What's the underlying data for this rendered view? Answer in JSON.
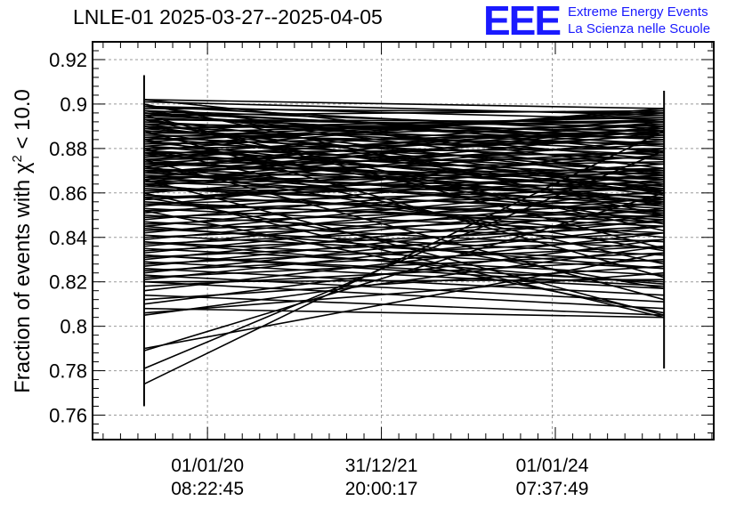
{
  "header": {
    "title": "LNLE-01 2025-03-27--2025-04-05",
    "logo_mark": "EEE",
    "logo_line1": "Extreme Energy Events",
    "logo_line2": "La Scienza nelle Scuole"
  },
  "colors": {
    "brand": "#1a1aff",
    "series": "#000000",
    "grid": "#9a9a9a"
  },
  "chart_data": {
    "type": "line",
    "title": "LNLE-01 2025-03-27--2025-04-05",
    "ylabel_main": "Fraction of events with χ",
    "ylabel_sup": "2",
    "ylabel_tail": " < 10.0",
    "xlabel": "",
    "ylim": [
      0.749,
      0.928
    ],
    "yticks": [
      0.76,
      0.78,
      0.8,
      0.82,
      0.84,
      0.86,
      0.88,
      0.9,
      0.92
    ],
    "ytick_labels": [
      "0.76",
      "0.78",
      "0.8",
      "0.82",
      "0.84",
      "0.86",
      "0.88",
      "0.9",
      "0.92"
    ],
    "xlim": [
      0,
      100
    ],
    "x_points": [
      8.3,
      92.0
    ],
    "xticks": [
      18.5,
      46.5,
      74.0
    ],
    "xtick_labels": [
      [
        "01/01/20",
        "08:22:45"
      ],
      [
        "31/12/21",
        "20:00:17"
      ],
      [
        "01/01/24",
        "07:37:49"
      ]
    ],
    "grid": true,
    "error_bars": [
      {
        "x": 8.3,
        "low": 0.764,
        "high": 0.913
      },
      {
        "x": 92.0,
        "low": 0.781,
        "high": 0.906
      }
    ],
    "segments": [
      [
        0.902,
        0.898
      ],
      [
        0.901,
        0.895
      ],
      [
        0.899,
        0.893
      ],
      [
        0.898,
        0.896
      ],
      [
        0.897,
        0.889
      ],
      [
        0.896,
        0.886
      ],
      [
        0.895,
        0.897
      ],
      [
        0.894,
        0.884
      ],
      [
        0.893,
        0.892
      ],
      [
        0.892,
        0.881
      ],
      [
        0.891,
        0.888
      ],
      [
        0.89,
        0.879
      ],
      [
        0.889,
        0.894
      ],
      [
        0.888,
        0.877
      ],
      [
        0.887,
        0.885
      ],
      [
        0.886,
        0.882
      ],
      [
        0.885,
        0.875
      ],
      [
        0.884,
        0.891
      ],
      [
        0.883,
        0.873
      ],
      [
        0.882,
        0.887
      ],
      [
        0.881,
        0.87
      ],
      [
        0.88,
        0.883
      ],
      [
        0.879,
        0.868
      ],
      [
        0.878,
        0.88
      ],
      [
        0.877,
        0.866
      ],
      [
        0.876,
        0.889
      ],
      [
        0.875,
        0.878
      ],
      [
        0.874,
        0.863
      ],
      [
        0.873,
        0.876
      ],
      [
        0.872,
        0.886
      ],
      [
        0.871,
        0.861
      ],
      [
        0.87,
        0.874
      ],
      [
        0.869,
        0.882
      ],
      [
        0.868,
        0.858
      ],
      [
        0.867,
        0.871
      ],
      [
        0.866,
        0.879
      ],
      [
        0.865,
        0.856
      ],
      [
        0.864,
        0.869
      ],
      [
        0.863,
        0.884
      ],
      [
        0.862,
        0.852
      ],
      [
        0.861,
        0.867
      ],
      [
        0.86,
        0.877
      ],
      [
        0.859,
        0.848
      ],
      [
        0.858,
        0.865
      ],
      [
        0.857,
        0.873
      ],
      [
        0.856,
        0.845
      ],
      [
        0.855,
        0.862
      ],
      [
        0.854,
        0.88
      ],
      [
        0.853,
        0.842
      ],
      [
        0.852,
        0.86
      ],
      [
        0.851,
        0.871
      ],
      [
        0.85,
        0.838
      ],
      [
        0.849,
        0.857
      ],
      [
        0.848,
        0.868
      ],
      [
        0.847,
        0.835
      ],
      [
        0.846,
        0.855
      ],
      [
        0.845,
        0.866
      ],
      [
        0.844,
        0.832
      ],
      [
        0.843,
        0.852
      ],
      [
        0.842,
        0.864
      ],
      [
        0.841,
        0.829
      ],
      [
        0.84,
        0.85
      ],
      [
        0.839,
        0.861
      ],
      [
        0.838,
        0.826
      ],
      [
        0.837,
        0.847
      ],
      [
        0.836,
        0.858
      ],
      [
        0.835,
        0.823
      ],
      [
        0.834,
        0.845
      ],
      [
        0.833,
        0.856
      ],
      [
        0.832,
        0.82
      ],
      [
        0.831,
        0.842
      ],
      [
        0.83,
        0.853
      ],
      [
        0.829,
        0.817
      ],
      [
        0.828,
        0.839
      ],
      [
        0.827,
        0.85
      ],
      [
        0.826,
        0.814
      ],
      [
        0.825,
        0.836
      ],
      [
        0.824,
        0.848
      ],
      [
        0.823,
        0.811
      ],
      [
        0.822,
        0.833
      ],
      [
        0.821,
        0.845
      ],
      [
        0.82,
        0.808
      ],
      [
        0.818,
        0.83
      ],
      [
        0.816,
        0.842
      ],
      [
        0.814,
        0.805
      ],
      [
        0.812,
        0.827
      ],
      [
        0.81,
        0.839
      ],
      [
        0.808,
        0.804
      ],
      [
        0.806,
        0.824
      ],
      [
        0.805,
        0.836
      ],
      [
        0.79,
        0.833
      ],
      [
        0.789,
        0.86
      ],
      [
        0.781,
        0.879
      ],
      [
        0.774,
        0.888
      ],
      [
        0.82,
        0.821
      ],
      [
        0.832,
        0.818
      ],
      [
        0.86,
        0.804
      ],
      [
        0.875,
        0.812
      ],
      [
        0.888,
        0.822
      ],
      [
        0.895,
        0.835
      ],
      [
        0.893,
        0.843
      ],
      [
        0.884,
        0.846
      ],
      [
        0.87,
        0.85
      ],
      [
        0.866,
        0.805
      ],
      [
        0.858,
        0.817
      ],
      [
        0.88,
        0.828
      ],
      [
        0.9,
        0.85
      ],
      [
        0.852,
        0.806
      ],
      [
        0.845,
        0.826
      ],
      [
        0.838,
        0.819
      ],
      [
        0.864,
        0.84
      ],
      [
        0.878,
        0.855
      ],
      [
        0.89,
        0.861
      ],
      [
        0.872,
        0.834
      ],
      [
        0.902,
        0.878
      ],
      [
        0.899,
        0.871
      ],
      [
        0.897,
        0.868
      ],
      [
        0.896,
        0.875
      ],
      [
        0.893,
        0.866
      ],
      [
        0.891,
        0.863
      ],
      [
        0.889,
        0.869
      ],
      [
        0.887,
        0.86
      ],
      [
        0.885,
        0.864
      ],
      [
        0.883,
        0.859
      ],
      [
        0.881,
        0.862
      ],
      [
        0.879,
        0.857
      ],
      [
        0.877,
        0.861
      ],
      [
        0.875,
        0.856
      ],
      [
        0.873,
        0.866
      ],
      [
        0.871,
        0.854
      ],
      [
        0.869,
        0.858
      ],
      [
        0.867,
        0.853
      ],
      [
        0.865,
        0.87
      ],
      [
        0.863,
        0.851
      ],
      [
        0.861,
        0.862
      ],
      [
        0.859,
        0.849
      ],
      [
        0.857,
        0.868
      ],
      [
        0.855,
        0.847
      ],
      [
        0.899,
        0.887
      ],
      [
        0.897,
        0.884
      ],
      [
        0.895,
        0.882
      ],
      [
        0.893,
        0.89
      ],
      [
        0.891,
        0.886
      ],
      [
        0.889,
        0.892
      ],
      [
        0.887,
        0.893
      ],
      [
        0.885,
        0.895
      ],
      [
        0.883,
        0.896
      ],
      [
        0.881,
        0.897
      ],
      [
        0.879,
        0.898
      ],
      [
        0.877,
        0.893
      ],
      [
        0.875,
        0.891
      ],
      [
        0.873,
        0.889
      ],
      [
        0.871,
        0.892
      ],
      [
        0.869,
        0.888
      ],
      [
        0.867,
        0.89
      ],
      [
        0.865,
        0.887
      ]
    ]
  }
}
